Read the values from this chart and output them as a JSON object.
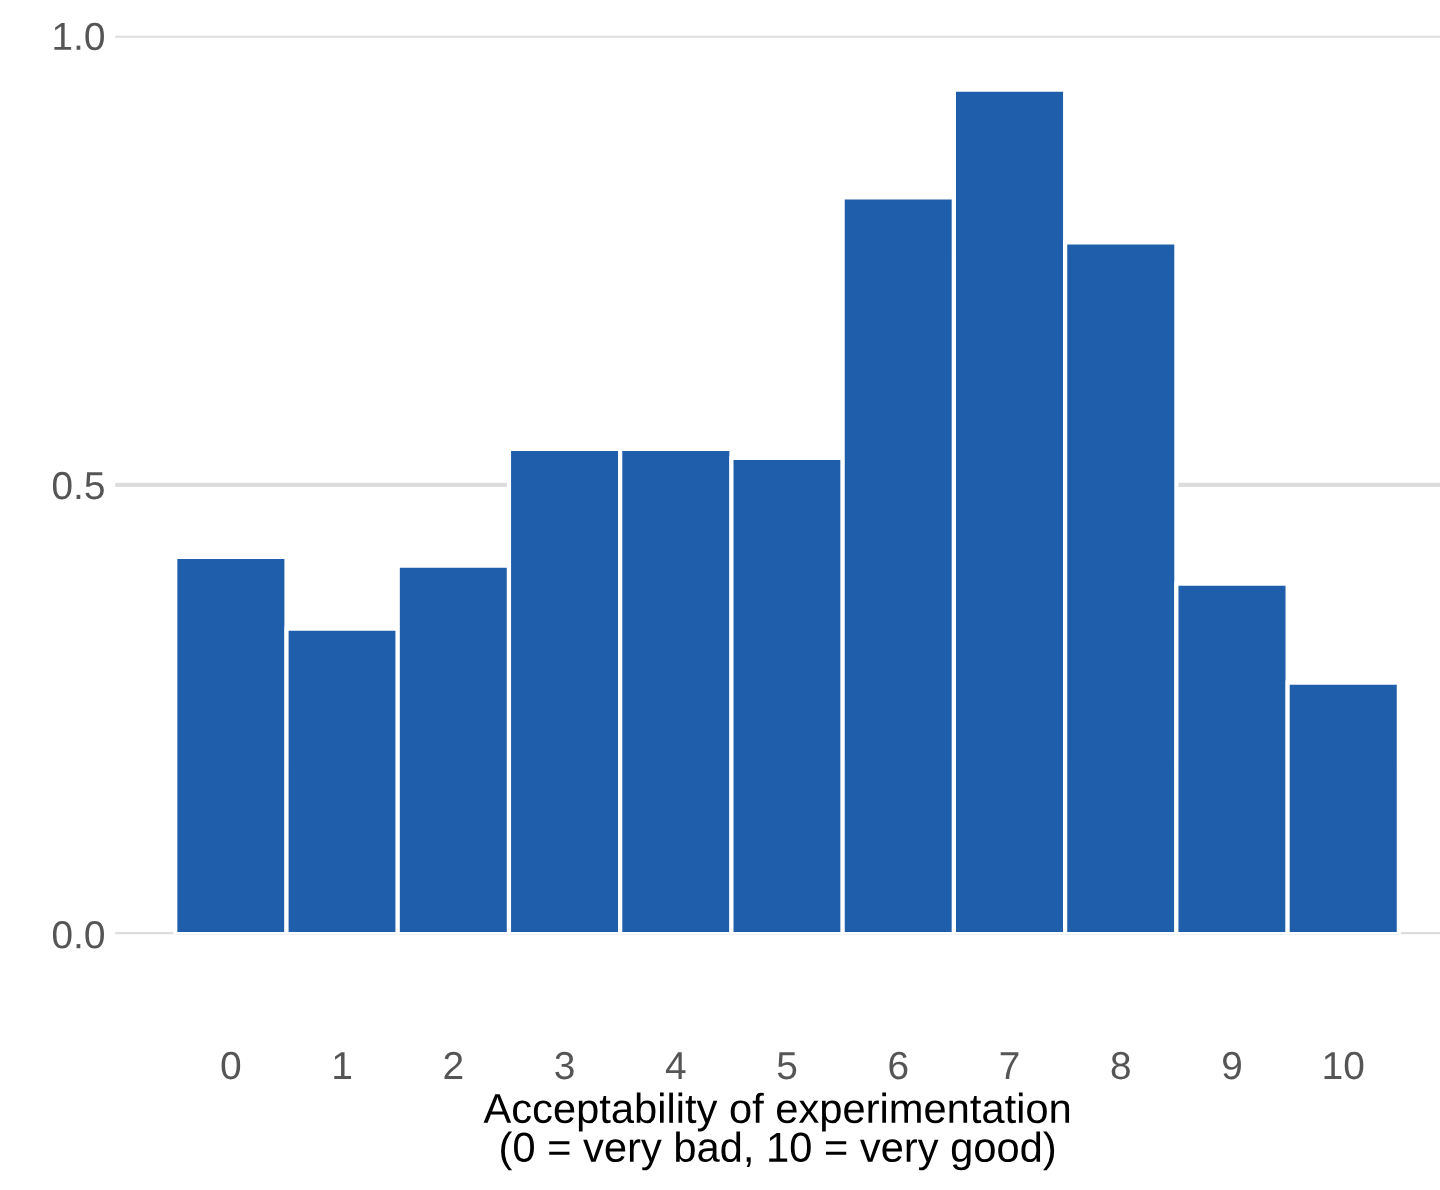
{
  "chart_data": {
    "type": "bar",
    "xlabel": "Acceptability of experimentation\n(0 = very bad, 10 = very good)",
    "categories": [
      "0",
      "1",
      "2",
      "3",
      "4",
      "5",
      "6",
      "7",
      "8",
      "9",
      "10"
    ],
    "values": [
      0.42,
      0.34,
      0.41,
      0.54,
      0.54,
      0.53,
      0.82,
      0.94,
      0.77,
      0.39,
      0.28
    ],
    "color": "#1f5eab",
    "ylim": [
      0,
      1
    ],
    "yticks": [
      {
        "value": 0,
        "label": "0.0"
      },
      {
        "value": 0.5,
        "label": "0.5"
      },
      {
        "value": 1,
        "label": "1.0"
      }
    ],
    "grid": "y"
  }
}
